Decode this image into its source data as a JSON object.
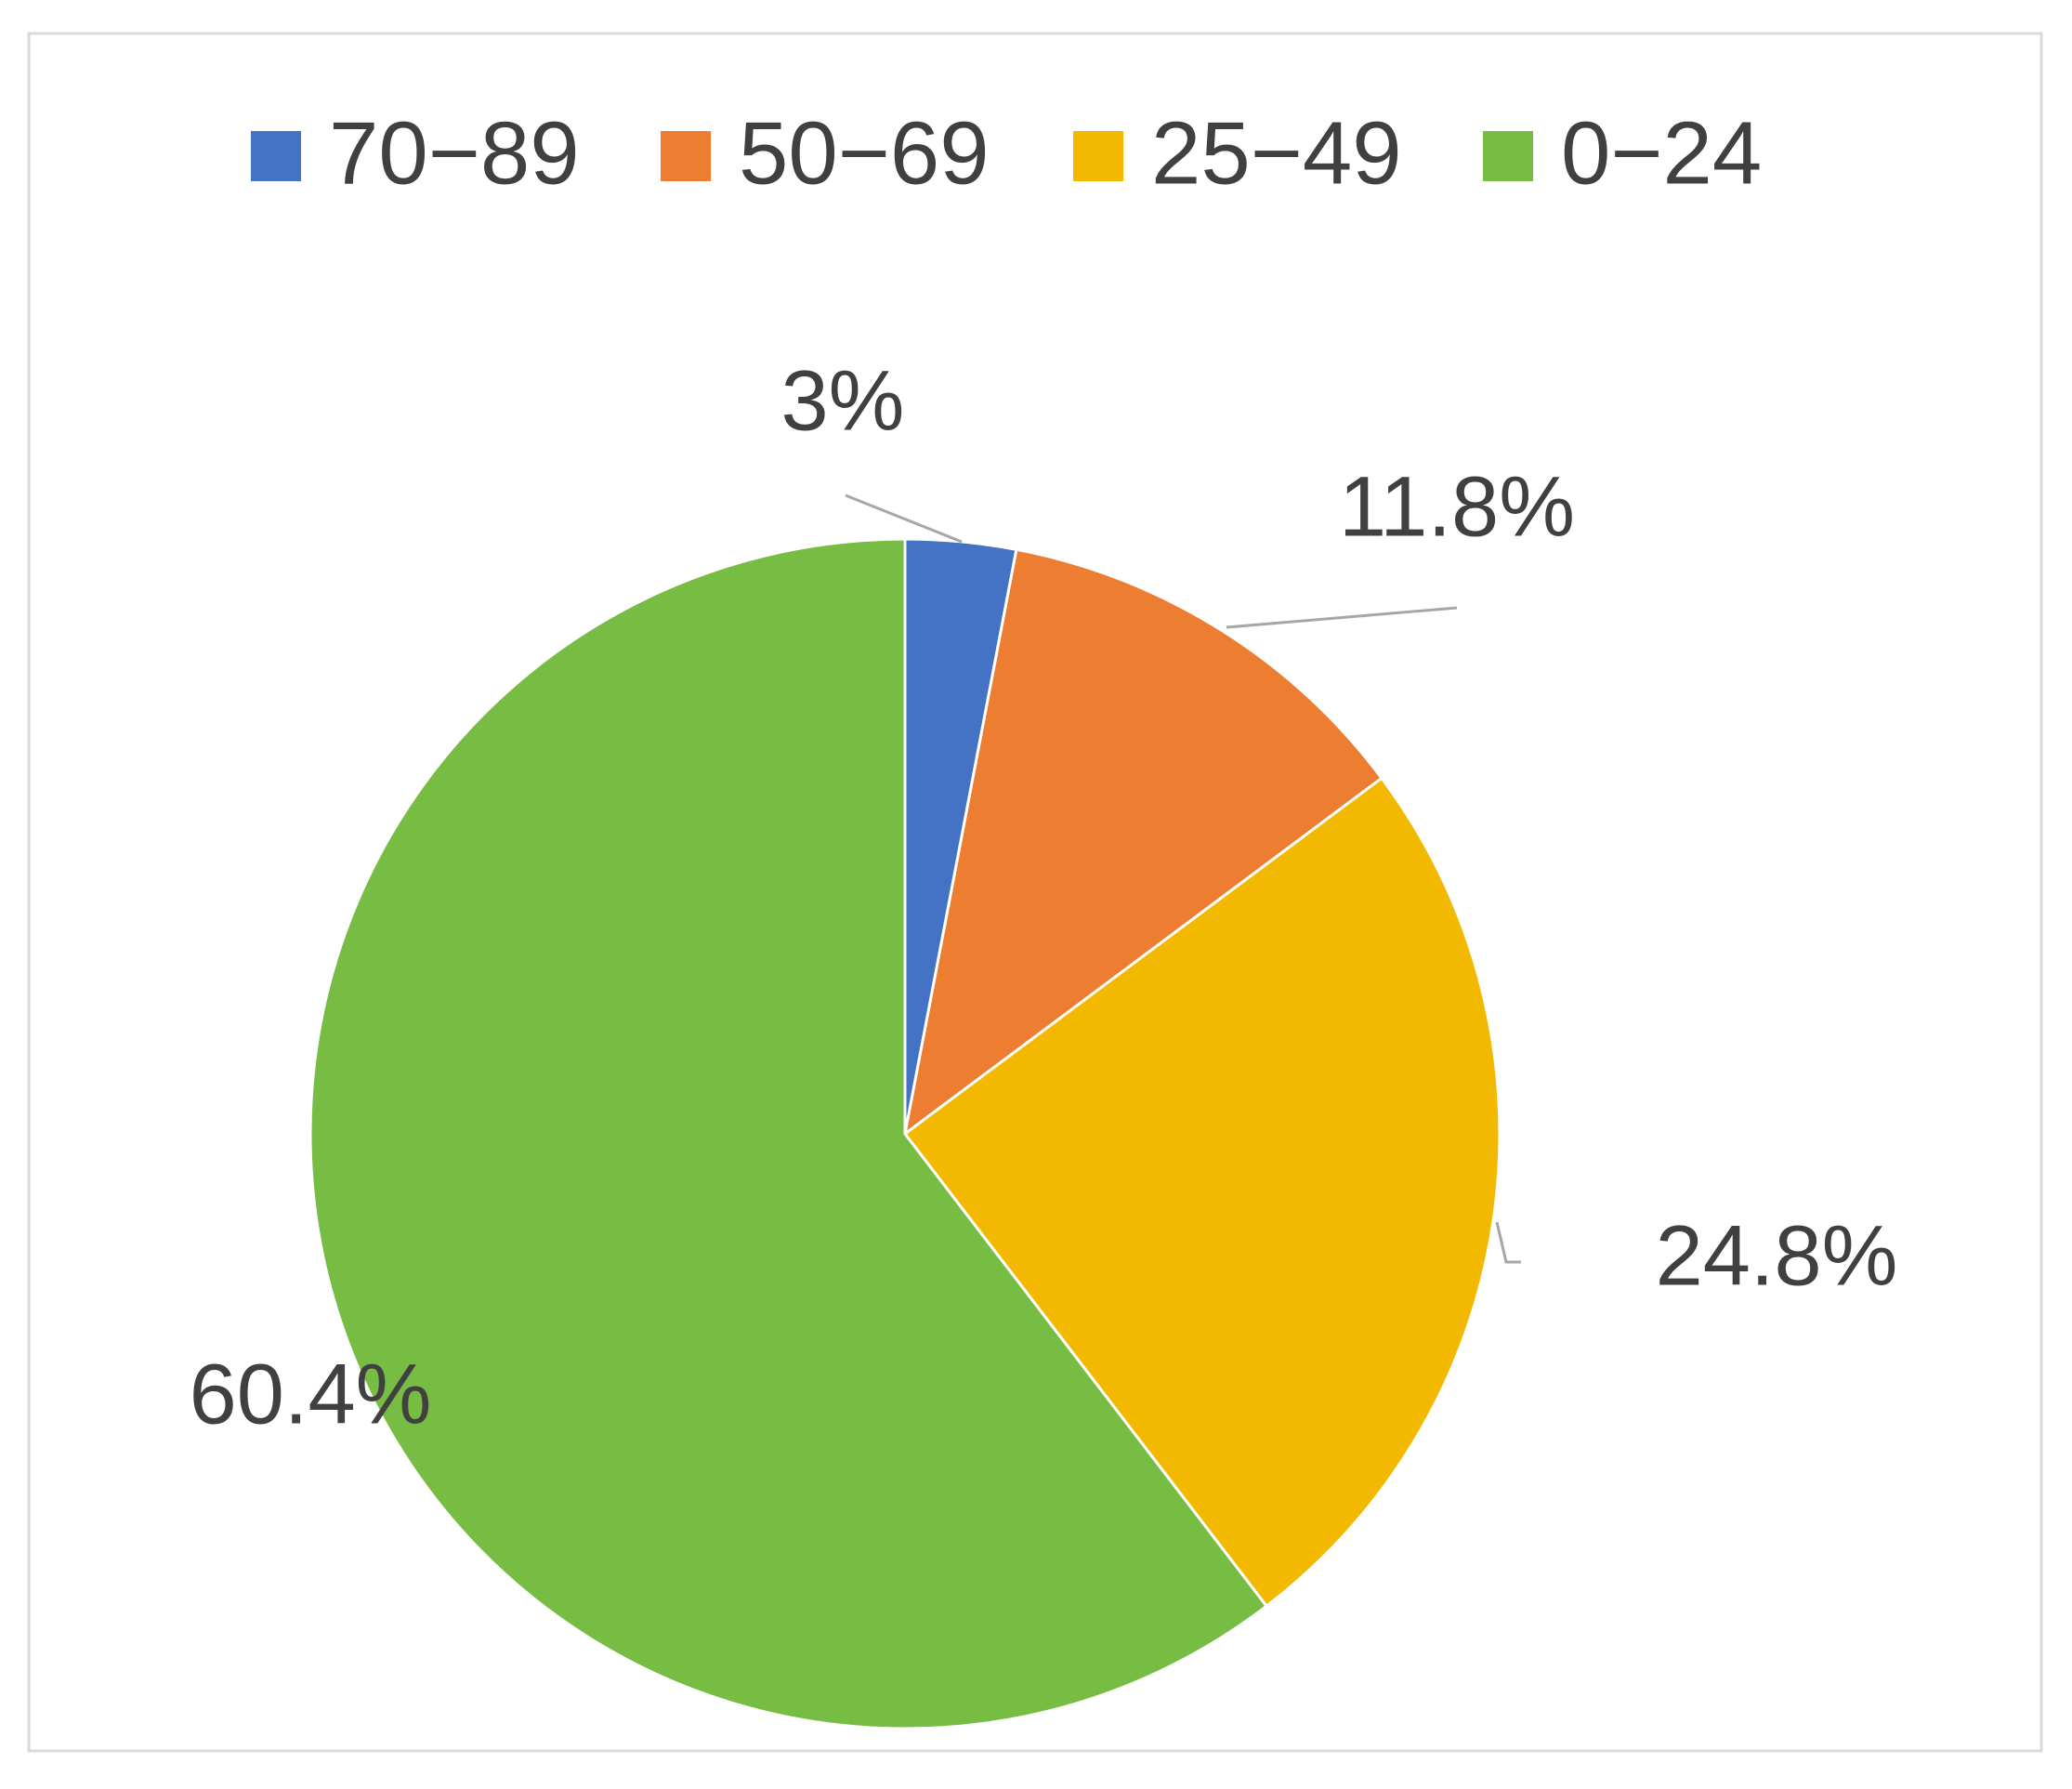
{
  "chart_data": {
    "type": "pie",
    "categories": [
      "70−89",
      "50−69",
      "25−49",
      "0−24"
    ],
    "values": [
      3,
      11.8,
      24.8,
      60.4
    ],
    "value_labels": [
      "3%",
      "11.8%",
      "24.8%",
      "60.4%"
    ],
    "colors": [
      "#4472c4",
      "#ed7d31",
      "#f2b900",
      "#77bc43"
    ],
    "legend": "top"
  }
}
